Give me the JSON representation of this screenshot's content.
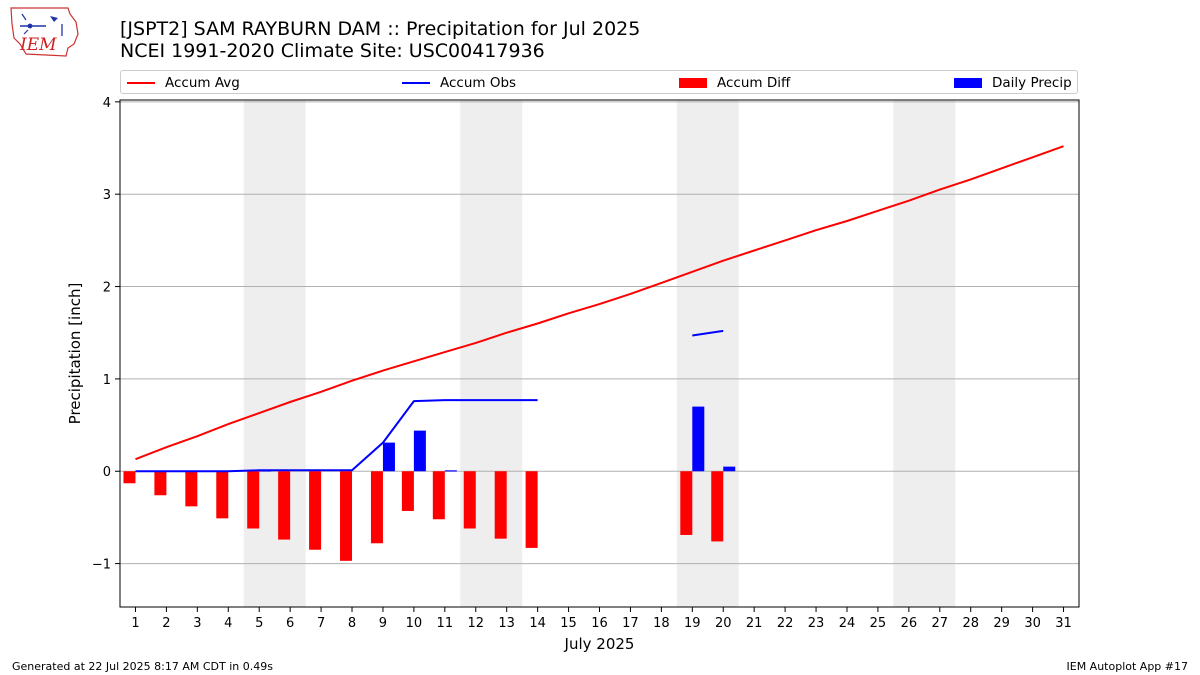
{
  "header": {
    "title_line1": "[JSPT2] SAM RAYBURN DAM :: Precipitation for Jul 2025",
    "title_line2": "NCEI 1991-2020 Climate Site: USC00417936",
    "logo_text": "IEM"
  },
  "footer": {
    "generated": "Generated at 22 Jul 2025 8:17 AM CDT in 0.49s",
    "app": "IEM Autoplot App #17"
  },
  "colors": {
    "accum_avg": "#ff0000",
    "accum_obs": "#0000ff",
    "accum_diff": "#ff0000",
    "daily_precip": "#0000ff",
    "weekend_shade": "#eeeeee",
    "grid": "#b0b0b0"
  },
  "chart_data": {
    "type": "bar",
    "xlabel": "July 2025",
    "ylabel": "Precipitation [inch]",
    "ylim": [
      -1.47,
      4.02
    ],
    "yticks": [
      -1,
      0,
      1,
      2,
      3,
      4
    ],
    "ytick_labels": [
      "−1",
      "0",
      "1",
      "2",
      "3",
      "4"
    ],
    "grid": "horizontal",
    "legend_position": "top",
    "x": [
      1,
      2,
      3,
      4,
      5,
      6,
      7,
      8,
      9,
      10,
      11,
      12,
      13,
      14,
      15,
      16,
      17,
      18,
      19,
      20,
      21,
      22,
      23,
      24,
      25,
      26,
      27,
      28,
      29,
      30,
      31
    ],
    "shaded_days": [
      [
        5,
        6
      ],
      [
        12,
        13
      ],
      [
        19,
        20
      ],
      [
        26,
        27
      ]
    ],
    "series": [
      {
        "name": "Accum Avg",
        "kind": "line",
        "values": [
          0.13,
          0.26,
          0.38,
          0.51,
          0.63,
          0.75,
          0.86,
          0.98,
          1.09,
          1.19,
          1.29,
          1.39,
          1.5,
          1.6,
          1.71,
          1.81,
          1.92,
          2.04,
          2.16,
          2.28,
          2.39,
          2.5,
          2.61,
          2.71,
          2.82,
          2.93,
          3.05,
          3.16,
          3.28,
          3.4,
          3.52
        ]
      },
      {
        "name": "Accum Obs",
        "kind": "line",
        "values": [
          0.0,
          0.0,
          0.0,
          0.0,
          0.01,
          0.01,
          0.01,
          0.01,
          0.31,
          0.76,
          0.77,
          0.77,
          0.77,
          0.77,
          null,
          null,
          null,
          null,
          1.47,
          1.52,
          null,
          null,
          null,
          null,
          null,
          null,
          null,
          null,
          null,
          null,
          null
        ]
      },
      {
        "name": "Accum Diff",
        "kind": "bar",
        "values": [
          -0.13,
          -0.26,
          -0.38,
          -0.51,
          -0.62,
          -0.74,
          -0.85,
          -0.97,
          -0.78,
          -0.43,
          -0.52,
          -0.62,
          -0.73,
          -0.83,
          null,
          null,
          null,
          null,
          -0.69,
          -0.76,
          null,
          null,
          null,
          null,
          null,
          null,
          null,
          null,
          null,
          null,
          null
        ]
      },
      {
        "name": "Daily Precip",
        "kind": "bar",
        "values": [
          0,
          0,
          0,
          0,
          0.01,
          0,
          0,
          0,
          0.31,
          0.44,
          0.01,
          0,
          0,
          0,
          null,
          null,
          null,
          null,
          0.7,
          0.05,
          null,
          null,
          null,
          null,
          null,
          null,
          null,
          null,
          null,
          null,
          null
        ]
      }
    ]
  }
}
